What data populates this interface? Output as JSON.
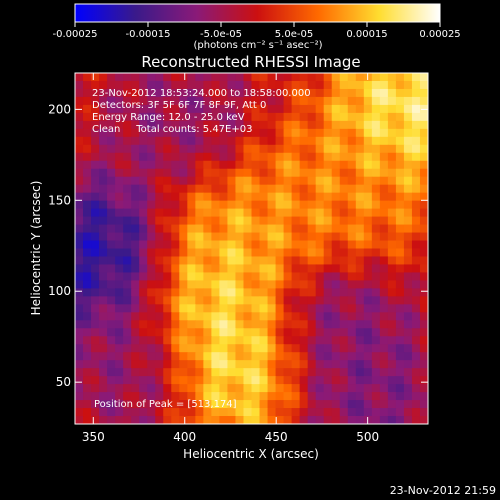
{
  "chart_data": {
    "type": "heatmap",
    "title": "Reconstructed RHESSI Image",
    "xlabel": "Heliocentric X (arcsec)",
    "ylabel": "Heliocentric Y (arcsec)",
    "xlim": [
      340,
      533
    ],
    "ylim": [
      27,
      220
    ],
    "x_ticks": [
      350,
      400,
      450,
      500
    ],
    "y_ticks": [
      50,
      100,
      150,
      200
    ],
    "colorbar": {
      "ticks": [
        -0.00025,
        -0.00015,
        -5e-05,
        5e-05,
        0.00015,
        0.00025
      ],
      "tick_labels": [
        "-0.00025",
        "-0.00015",
        "-5.0e-05",
        "5.0e-05",
        "0.00015",
        "0.00025"
      ],
      "range": [
        -0.00025,
        0.00025
      ],
      "units_label": "(photons cm⁻² s⁻¹ asec⁻²)",
      "colors": [
        "#0000ff",
        "#3a1a8a",
        "#8a1a78",
        "#cc1010",
        "#ff6a00",
        "#ffdd30",
        "#ffffff"
      ]
    },
    "annotations": [
      "23-Nov-2012 18:53:24.000 to 18:58:00.000",
      "Detectors: 3F 5F 6F 7F 8F 9F, Att 0",
      "Energy Range: 12.0 - 25.0 keV",
      "Clean     Total counts: 5.47E+03"
    ],
    "peak_label": "Position of Peak = [513,174]",
    "regions": [
      {
        "x": 430,
        "y": 60,
        "value": 0.00022
      },
      {
        "x": 418,
        "y": 95,
        "value": 0.0002
      },
      {
        "x": 425,
        "y": 130,
        "value": 0.00015
      },
      {
        "x": 470,
        "y": 150,
        "value": 0.00012
      },
      {
        "x": 520,
        "y": 195,
        "value": 0.00024
      },
      {
        "x": 505,
        "y": 160,
        "value": 0.0001
      },
      {
        "x": 355,
        "y": 120,
        "value": -0.00022
      },
      {
        "x": 395,
        "y": 190,
        "value": -8e-05
      },
      {
        "x": 370,
        "y": 60,
        "value": -9e-05
      },
      {
        "x": 480,
        "y": 80,
        "value": -0.0001
      },
      {
        "x": 500,
        "y": 45,
        "value": -0.00011
      }
    ]
  },
  "footer_timestamp": "23-Nov-2012 21:59"
}
